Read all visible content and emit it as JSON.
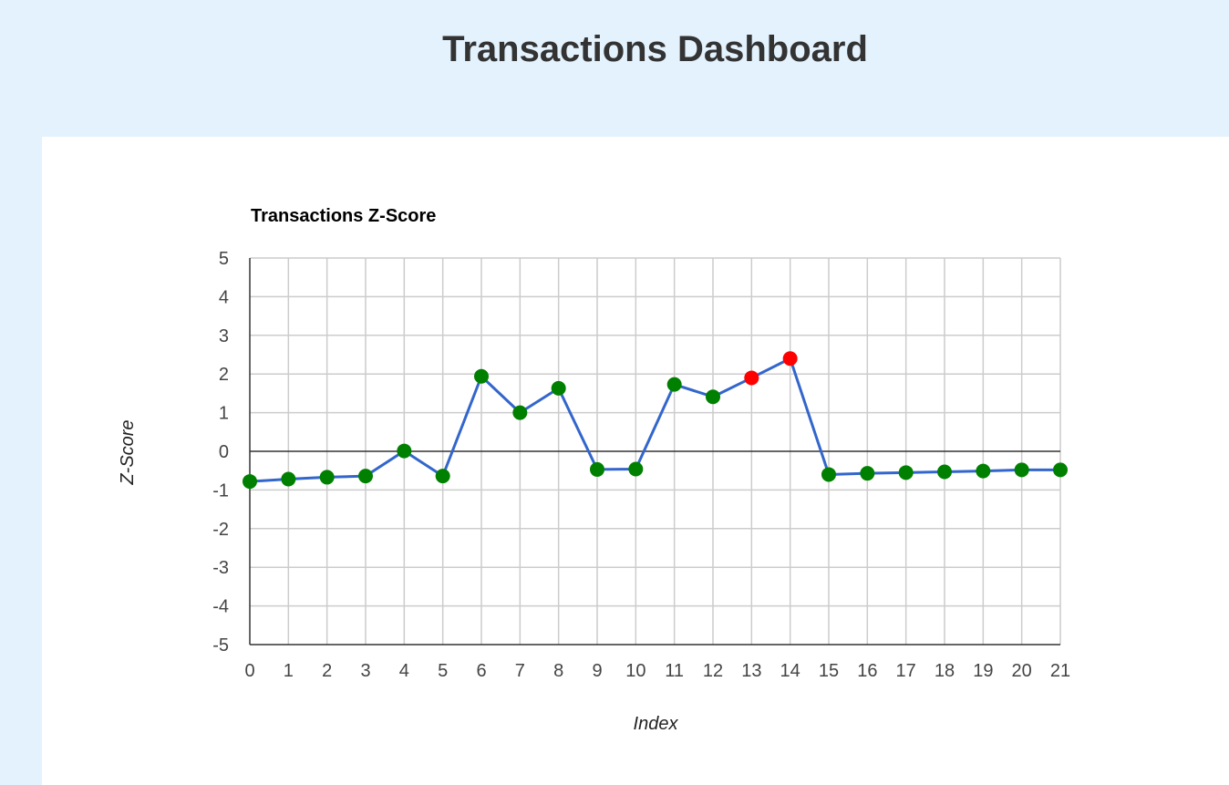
{
  "header": {
    "title": "Transactions Dashboard"
  },
  "chart_data": {
    "type": "line",
    "title": "Transactions Z-Score",
    "xlabel": "Index",
    "ylabel": "Z-Score",
    "x": [
      0,
      1,
      2,
      3,
      4,
      5,
      6,
      7,
      8,
      9,
      10,
      11,
      12,
      13,
      14,
      15,
      16,
      17,
      18,
      19,
      20,
      21
    ],
    "series": [
      {
        "values": [
          -0.78,
          -0.72,
          -0.67,
          -0.64,
          0.01,
          -0.64,
          1.94,
          1.0,
          1.63,
          -0.47,
          -0.46,
          1.73,
          1.41,
          1.9,
          2.4,
          -0.6,
          -0.57,
          -0.55,
          -0.53,
          -0.51,
          -0.48,
          -0.48
        ],
        "line_color": "#3366cc"
      }
    ],
    "point_colors": [
      "#008000",
      "#008000",
      "#008000",
      "#008000",
      "#008000",
      "#008000",
      "#008000",
      "#008000",
      "#008000",
      "#008000",
      "#008000",
      "#008000",
      "#008000",
      "#ff0000",
      "#ff0000",
      "#008000",
      "#008000",
      "#008000",
      "#008000",
      "#008000",
      "#008000",
      "#008000"
    ],
    "xlim": [
      0,
      21
    ],
    "ylim": [
      -5,
      5
    ],
    "yticks": [
      5,
      4,
      3,
      2,
      1,
      0,
      -1,
      -2,
      -3,
      -4,
      -5
    ],
    "xticks": [
      0,
      1,
      2,
      3,
      4,
      5,
      6,
      7,
      8,
      9,
      10,
      11,
      12,
      13,
      14,
      15,
      16,
      17,
      18,
      19,
      20,
      21
    ],
    "grid": true,
    "legend": "none"
  }
}
